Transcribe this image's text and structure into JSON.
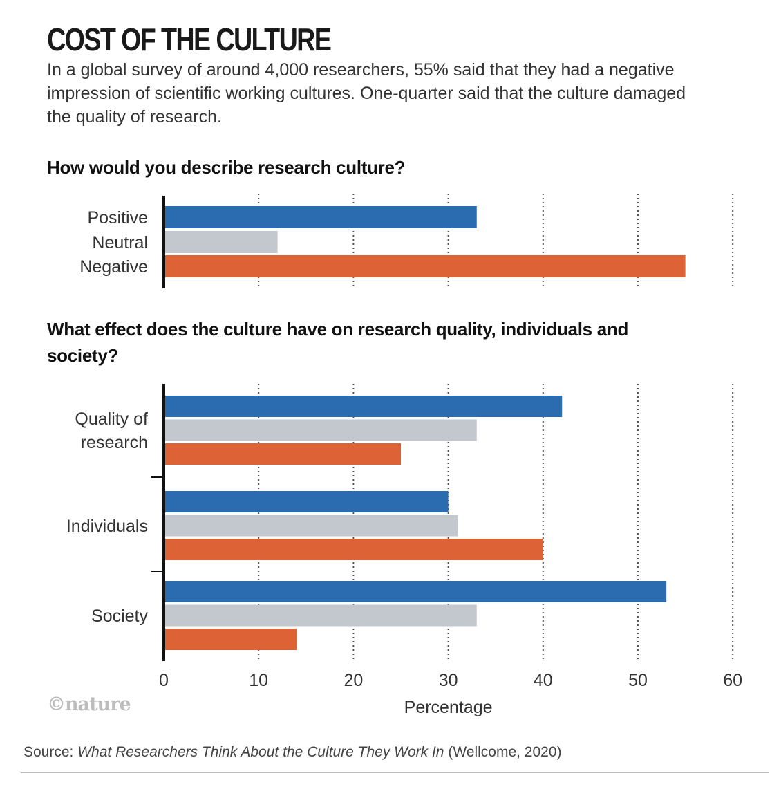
{
  "title": "COST OF THE CULTURE",
  "subtitle": "In a global survey of around 4,000 researchers, 55% said that they had a negative impression of scientific working cultures. One-quarter said that the culture damaged the quality of research.",
  "logo": "©nature",
  "source": {
    "prefix": "Source: ",
    "work": "What Researchers Think About the Culture They Work In",
    "suffix": " (Wellcome, 2020)"
  },
  "colors": {
    "positive": "#2b6cb0",
    "neutral": "#c3c8cf",
    "negative": "#dd6236"
  },
  "chart_data": [
    {
      "type": "bar",
      "orientation": "horizontal",
      "title": "How would you describe research culture?",
      "categories": [
        "Positive",
        "Neutral",
        "Negative"
      ],
      "values": [
        33,
        12,
        55
      ],
      "xlim": [
        0,
        60
      ],
      "grid": "dotted vertical"
    },
    {
      "type": "bar",
      "orientation": "horizontal",
      "title": "What effect does the culture have on research quality, individuals and society?",
      "categories": [
        "Quality of research",
        "Individuals",
        "Society"
      ],
      "category_lines": [
        [
          "Quality of",
          "research"
        ],
        [
          "Individuals"
        ],
        [
          "Society"
        ]
      ],
      "series": [
        {
          "name": "Positive",
          "values": [
            42,
            30,
            53
          ]
        },
        {
          "name": "Neutral",
          "values": [
            33,
            31,
            33
          ]
        },
        {
          "name": "Negative",
          "values": [
            25,
            40,
            14
          ]
        }
      ],
      "xlim": [
        0,
        60
      ],
      "xticks": [
        0,
        10,
        20,
        30,
        40,
        50,
        60
      ],
      "xlabel": "Percentage",
      "grid": "dotted vertical"
    }
  ]
}
